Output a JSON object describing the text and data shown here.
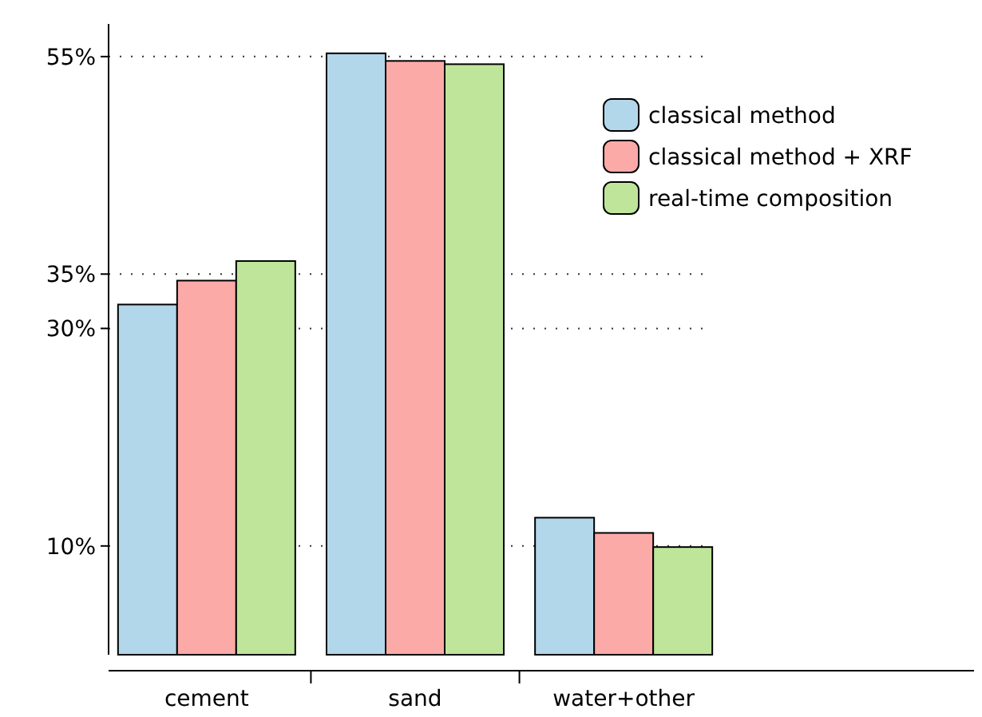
{
  "chart_data": {
    "type": "bar",
    "categories": [
      "cement",
      "sand",
      "water+other"
    ],
    "series": [
      {
        "name": "classical method",
        "color": "#b3d7ea",
        "values": [
          32.2,
          55.3,
          12.6
        ]
      },
      {
        "name": "classical method + XRF",
        "color": "#fbaaa8",
        "values": [
          34.4,
          54.6,
          11.2
        ]
      },
      {
        "name": "real-time composition",
        "color": "#bfe59b",
        "values": [
          36.2,
          54.3,
          9.9
        ]
      }
    ],
    "ylim": [
      0,
      58
    ],
    "yticks": [
      {
        "value": 10,
        "label": "10%"
      },
      {
        "value": 30,
        "label": "30%"
      },
      {
        "value": 35,
        "label": "35%"
      },
      {
        "value": 55,
        "label": "55%"
      }
    ],
    "grid": "y",
    "legend": "top right"
  }
}
